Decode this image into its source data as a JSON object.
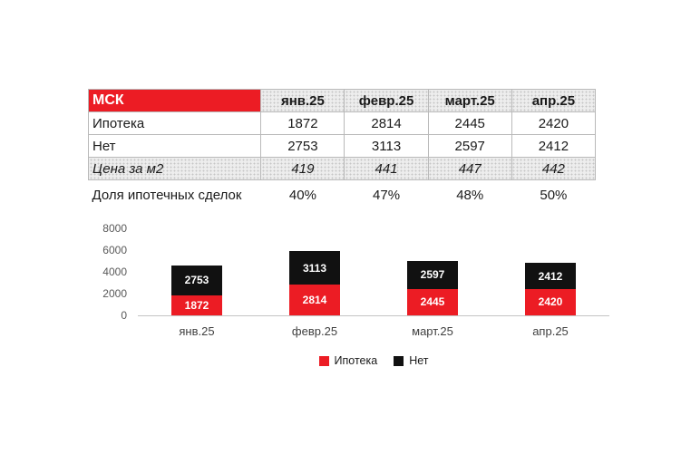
{
  "table": {
    "header": {
      "title": "МСК",
      "columns": [
        "янв.25",
        "февр.25",
        "март.25",
        "апр.25"
      ]
    },
    "rows": [
      {
        "label": "Ипотека",
        "cells": [
          "1872",
          "2814",
          "2445",
          "2420"
        ]
      },
      {
        "label": "Нет",
        "cells": [
          "2753",
          "3113",
          "2597",
          "2412"
        ]
      },
      {
        "label": "Цена за м2",
        "cells": [
          "419",
          "441",
          "447",
          "442"
        ]
      },
      {
        "label": "Доля ипотечных сделок",
        "cells": [
          "40%",
          "47%",
          "48%",
          "50%"
        ]
      }
    ]
  },
  "chart_data": {
    "type": "bar",
    "stacked": true,
    "title": "",
    "categories": [
      "янв.25",
      "февр.25",
      "март.25",
      "апр.25"
    ],
    "series": [
      {
        "name": "Ипотека",
        "color": "#EC1C24",
        "values": [
          1872,
          2814,
          2445,
          2420
        ]
      },
      {
        "name": "Нет",
        "color": "#111111",
        "values": [
          2753,
          3113,
          2597,
          2412
        ]
      }
    ],
    "ylim": [
      0,
      8000
    ],
    "yticks": [
      0,
      2000,
      4000,
      6000,
      8000
    ],
    "grid": false,
    "legend_position": "bottom",
    "value_labels": "inside-white"
  },
  "colors": {
    "accent_red": "#EC1C24",
    "bar_black": "#111111",
    "axis_gray": "#595959",
    "border_gray": "#b9b9b9"
  }
}
